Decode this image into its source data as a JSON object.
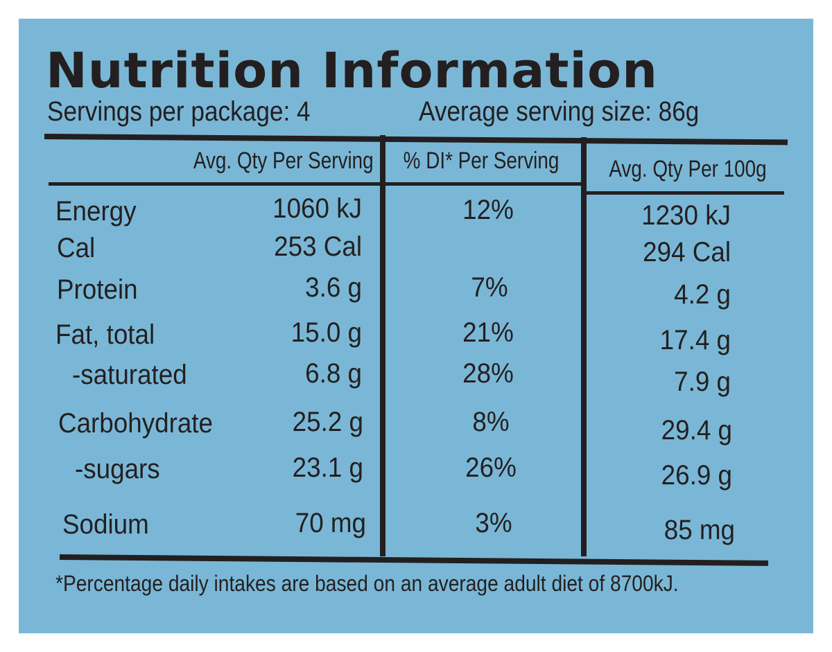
{
  "title": "Nutrition Information",
  "servings_per_package": "Servings per package: 4",
  "average_serving_size": "Average serving size: 86g",
  "columns": [
    "Avg. Qty Per Serving",
    "% DI* Per Serving",
    "Avg. Qty Per 100g"
  ],
  "rows": [
    {
      "label": "Energy",
      "per_serving": "1060 kJ",
      "di": "12%",
      "per_100g": "1230 kJ"
    },
    {
      "label": "Cal",
      "per_serving": "253 Cal",
      "di": "",
      "per_100g": "294 Cal"
    },
    {
      "label": "Protein",
      "per_serving": "3.6 g",
      "di": "7%",
      "per_100g": "4.2 g"
    },
    {
      "label": "Fat, total",
      "per_serving": "15.0 g",
      "di": "21%",
      "per_100g": "17.4 g"
    },
    {
      "label": "-saturated",
      "per_serving": "6.8 g",
      "di": "28%",
      "per_100g": "7.9 g"
    },
    {
      "label": "Carbohydrate",
      "per_serving": "25.2 g",
      "di": "8%",
      "per_100g": "29.4 g"
    },
    {
      "label": "-sugars",
      "per_serving": "23.1 g",
      "di": "26%",
      "per_100g": "26.9 g"
    },
    {
      "label": "Sodium",
      "per_serving": "70 mg",
      "di": "3%",
      "per_100g": "85 mg"
    }
  ],
  "footnote": "*Percentage daily intakes are based on an average adult diet of 8700kJ.",
  "colors": {
    "background": "#7ab7d6",
    "ink": "#231f20",
    "frame": "#ffffff"
  }
}
